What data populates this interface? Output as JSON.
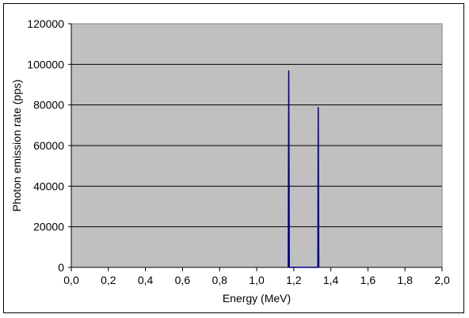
{
  "chart_data": {
    "type": "line",
    "title": "",
    "xlabel": "Energy (MeV)",
    "ylabel": "Photon emission rate (pps)",
    "xlim": [
      0.0,
      2.0
    ],
    "ylim": [
      0,
      120000
    ],
    "x_ticks": [
      "0,0",
      "0,2",
      "0,4",
      "0,6",
      "0,8",
      "1,0",
      "1,2",
      "1,4",
      "1,6",
      "1,8",
      "2,0"
    ],
    "y_ticks": [
      "0",
      "20000",
      "40000",
      "60000",
      "80000",
      "100000",
      "120000"
    ],
    "grid": "horizontal",
    "plot_background": "#C0C0C0",
    "series": [
      {
        "color": "#000080",
        "points": [
          {
            "x": 1.17,
            "y": 0
          },
          {
            "x": 1.173,
            "y": 97000
          },
          {
            "x": 1.176,
            "y": 0
          },
          {
            "x": 1.33,
            "y": 0
          },
          {
            "x": 1.332,
            "y": 79000
          },
          {
            "x": 1.335,
            "y": 0
          }
        ]
      }
    ]
  }
}
